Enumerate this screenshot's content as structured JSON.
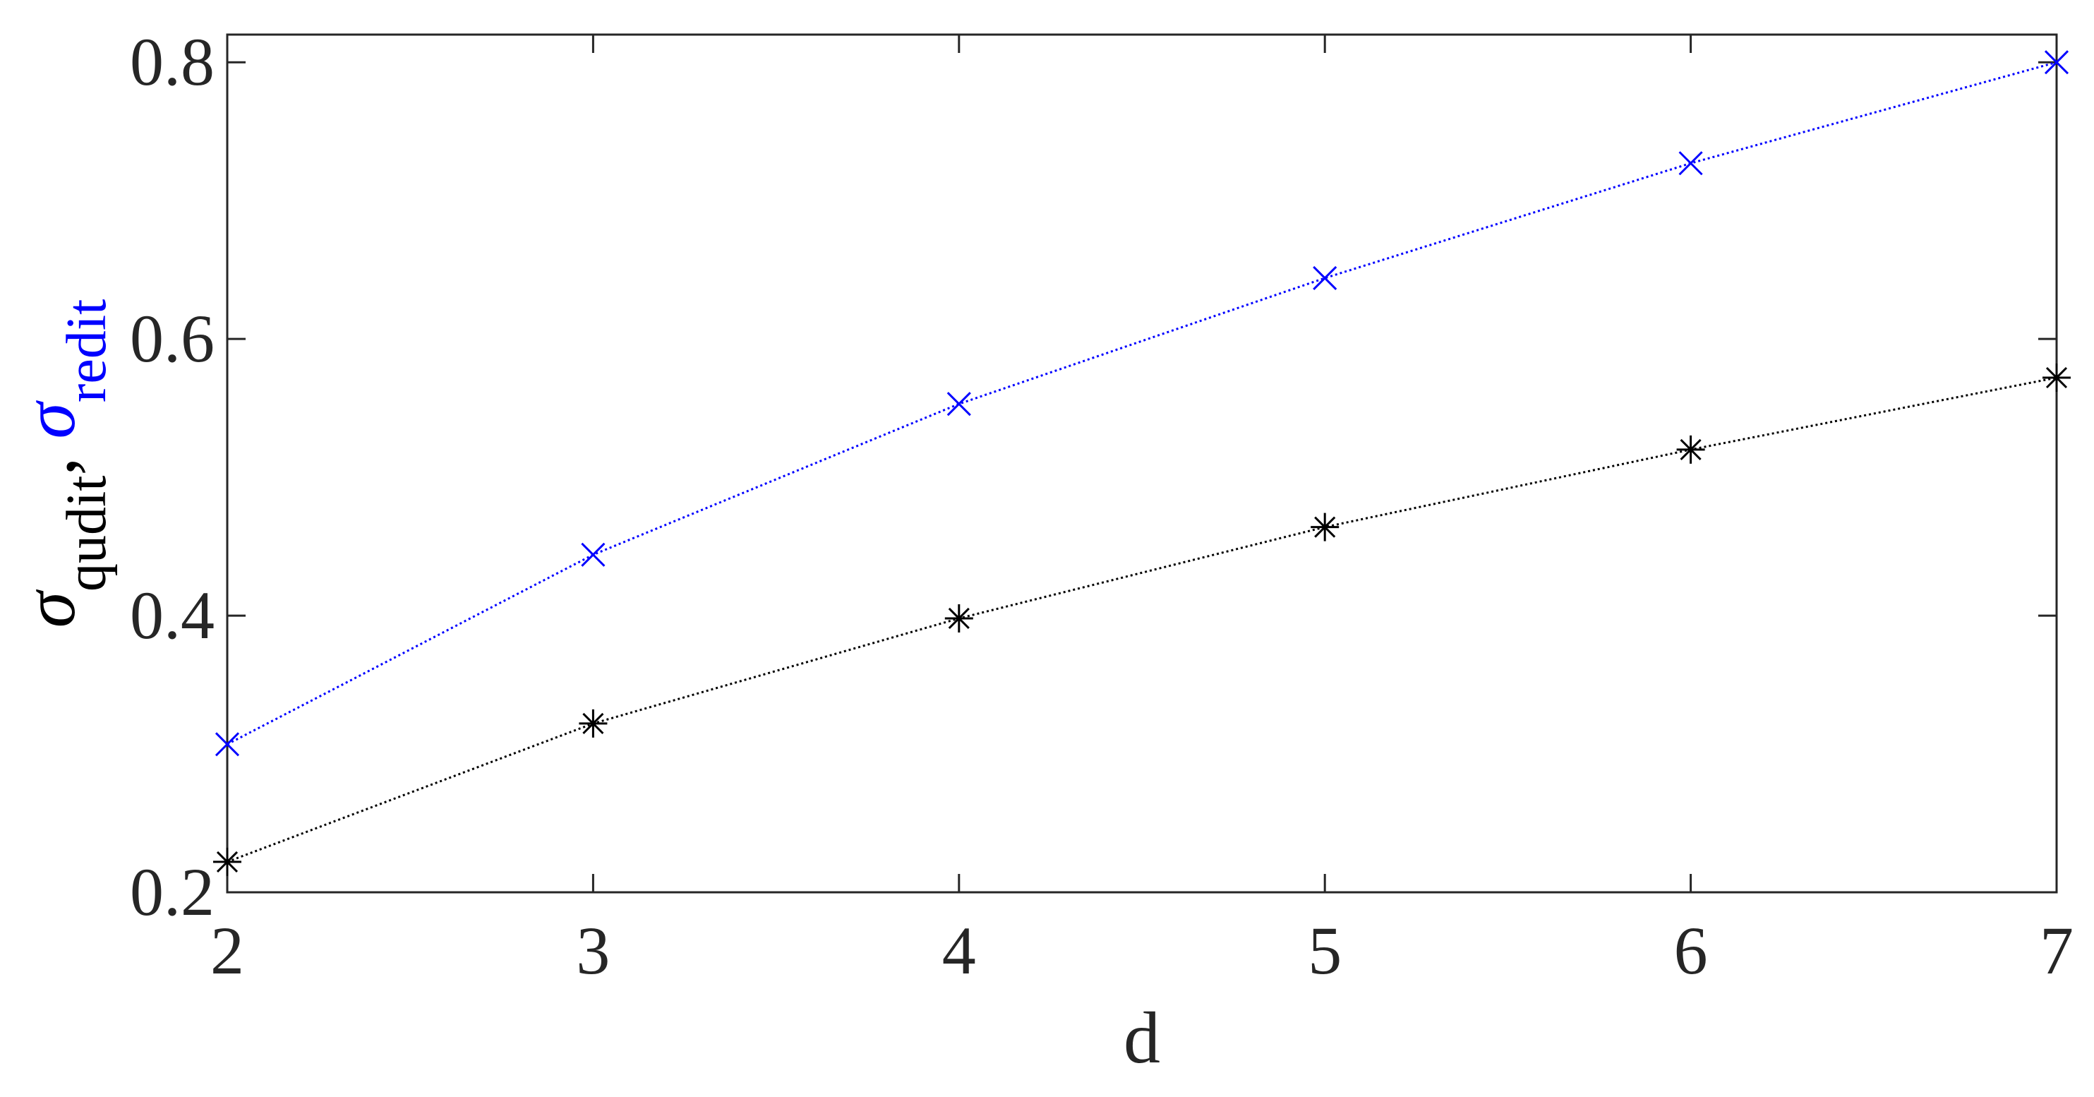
{
  "chart_data": {
    "type": "line",
    "xlabel": "d",
    "ylabel": [
      {
        "text": "σ",
        "color": "#000000",
        "italic": true
      },
      {
        "text": "qudit",
        "color": "#000000",
        "sub": true
      },
      {
        "text": ", ",
        "color": "#000000"
      },
      {
        "text": "σ",
        "color": "#0000ff",
        "italic": true
      },
      {
        "text": "redit",
        "color": "#0000ff",
        "sub": true
      }
    ],
    "x": [
      2,
      3,
      4,
      5,
      6,
      7
    ],
    "series": [
      {
        "color": "#000000",
        "marker": "asterisk",
        "values": [
          0.222,
          0.322,
          0.398,
          0.464,
          0.52,
          0.572
        ]
      },
      {
        "color": "#0000ff",
        "marker": "x",
        "values": [
          0.307,
          0.444,
          0.553,
          0.644,
          0.727,
          0.8
        ]
      }
    ],
    "xlim": [
      2,
      7
    ],
    "xticks": [
      2,
      3,
      4,
      5,
      6,
      7
    ],
    "ylim": [
      0.2,
      0.82
    ],
    "yticks": [
      0.2,
      0.4,
      0.6,
      0.8
    ],
    "grid": false
  }
}
